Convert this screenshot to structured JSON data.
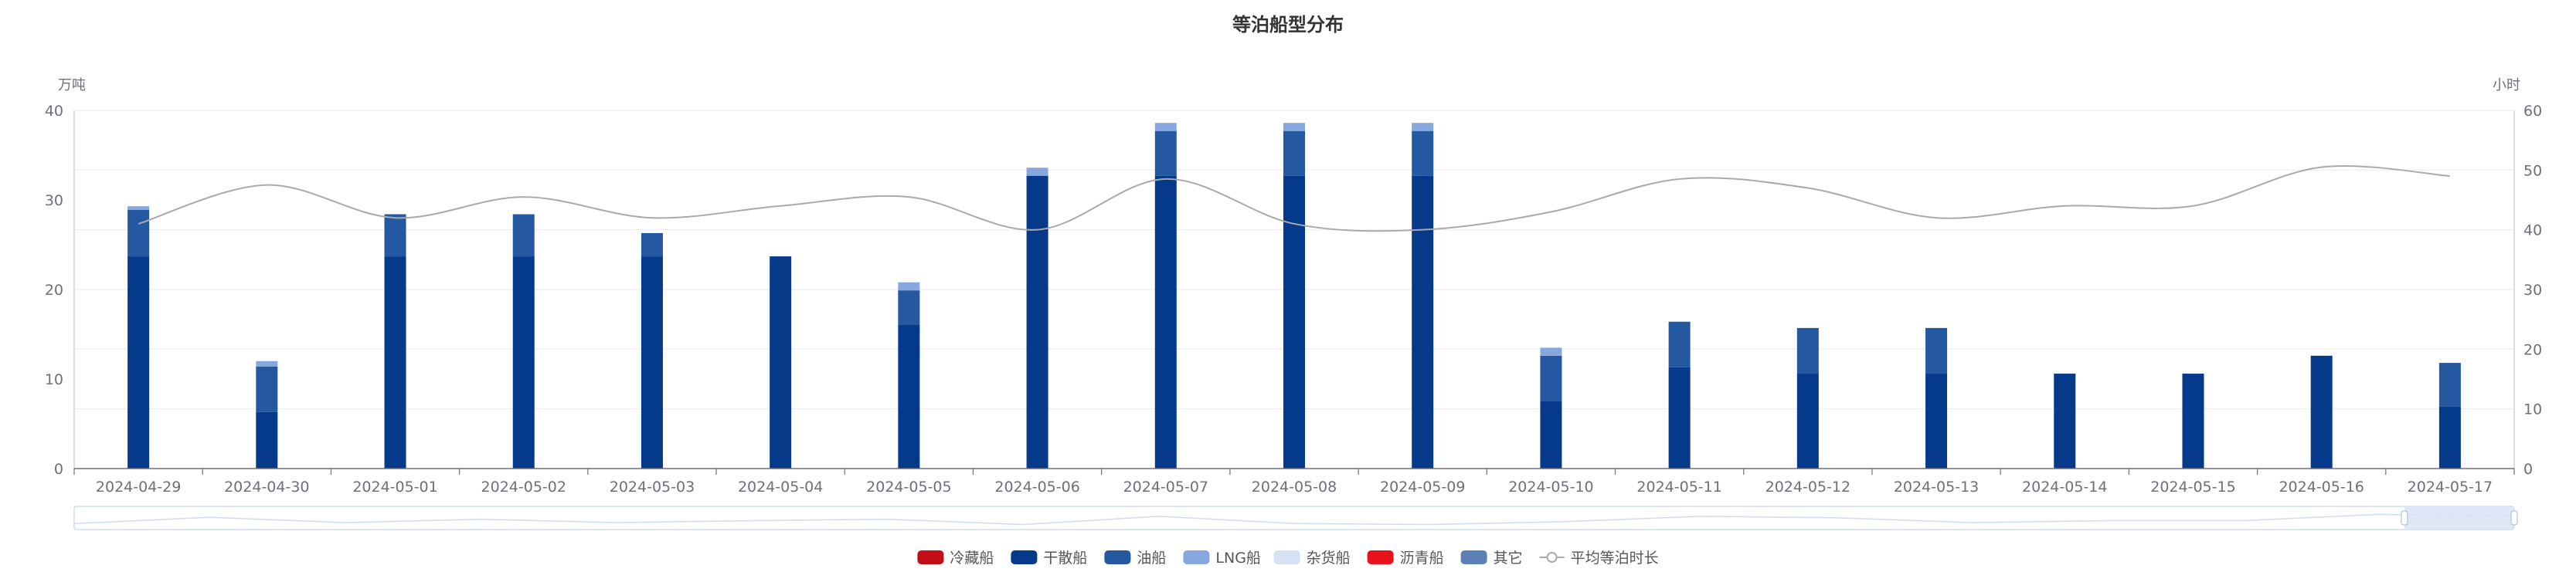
{
  "chart_data": {
    "type": "bar",
    "title": "等泊船型分布",
    "y_left_unit": "万吨",
    "y_right_unit": "小时",
    "ylim_left": [
      0,
      40
    ],
    "ylim_right": [
      0,
      60
    ],
    "y_left_ticks": [
      "0",
      "10",
      "20",
      "30",
      "40"
    ],
    "y_right_ticks": [
      "0",
      "10",
      "20",
      "30",
      "40",
      "50",
      "60"
    ],
    "grid": true,
    "legend_position": "bottom",
    "stacked": true,
    "categories": [
      "2024-04-29",
      "2024-04-30",
      "2024-05-01",
      "2024-05-02",
      "2024-05-03",
      "2024-05-04",
      "2024-05-05",
      "2024-05-06",
      "2024-05-07",
      "2024-05-08",
      "2024-05-09",
      "2024-05-10",
      "2024-05-11",
      "2024-05-12",
      "2024-05-13",
      "2024-05-14",
      "2024-05-15",
      "2024-05-16",
      "2024-05-17"
    ],
    "series": [
      {
        "name": "冷藏船",
        "kind": "bar",
        "axis": "left",
        "color": "#c40e16",
        "values": [
          0,
          0,
          0,
          0,
          0,
          0,
          0,
          0,
          0,
          0,
          0,
          0,
          0,
          0,
          0,
          0,
          0,
          0,
          0
        ]
      },
      {
        "name": "干散船",
        "kind": "bar",
        "axis": "left",
        "color": "#053a8b",
        "values": [
          23.7,
          6.3,
          23.7,
          23.7,
          23.7,
          23.7,
          16.1,
          32.7,
          32.7,
          32.7,
          32.7,
          7.5,
          11.3,
          10.6,
          10.6,
          10.6,
          10.6,
          12.6,
          6.9
        ]
      },
      {
        "name": "油船",
        "kind": "bar",
        "axis": "left",
        "color": "#2459a1",
        "values": [
          5.2,
          5.1,
          4.7,
          4.7,
          2.6,
          0,
          3.8,
          0,
          5.0,
          5.0,
          5.0,
          5.1,
          5.1,
          5.1,
          5.1,
          0,
          0,
          0,
          4.9
        ]
      },
      {
        "name": "LNG船",
        "kind": "bar",
        "axis": "left",
        "color": "#86a8df",
        "values": [
          0.4,
          0.6,
          0,
          0,
          0,
          0,
          0.9,
          0.9,
          0.9,
          0.9,
          0.9,
          0.9,
          0,
          0,
          0,
          0,
          0,
          0,
          0
        ]
      },
      {
        "name": "杂货船",
        "kind": "bar",
        "axis": "left",
        "color": "#d6e2f4",
        "values": [
          0,
          0,
          0,
          0,
          0,
          0,
          0,
          0,
          0,
          0,
          0,
          0,
          0,
          0,
          0,
          0,
          0,
          0,
          0
        ]
      },
      {
        "name": "沥青船",
        "kind": "bar",
        "axis": "left",
        "color": "#e8121c",
        "values": [
          0,
          0,
          0,
          0,
          0,
          0,
          0,
          0,
          0,
          0,
          0,
          0,
          0,
          0,
          0,
          0,
          0,
          0,
          0
        ]
      },
      {
        "name": "其它",
        "kind": "bar",
        "axis": "left",
        "color": "#5b7fb7",
        "values": [
          0,
          0,
          0,
          0,
          0,
          0,
          0,
          0,
          0,
          0,
          0,
          0,
          0,
          0,
          0,
          0,
          0,
          0,
          0
        ]
      },
      {
        "name": "平均等泊时长",
        "kind": "line",
        "axis": "right",
        "color": "#aaaaaa",
        "values": [
          41,
          47.5,
          42,
          45.5,
          42,
          44,
          45.5,
          40,
          48.5,
          41,
          40,
          43,
          48.5,
          47,
          42,
          44,
          44,
          50.5,
          49
        ]
      }
    ],
    "datazoom": {
      "start_label": "",
      "end_label": "",
      "window_start": 0.955,
      "window_end": 1.0
    }
  }
}
